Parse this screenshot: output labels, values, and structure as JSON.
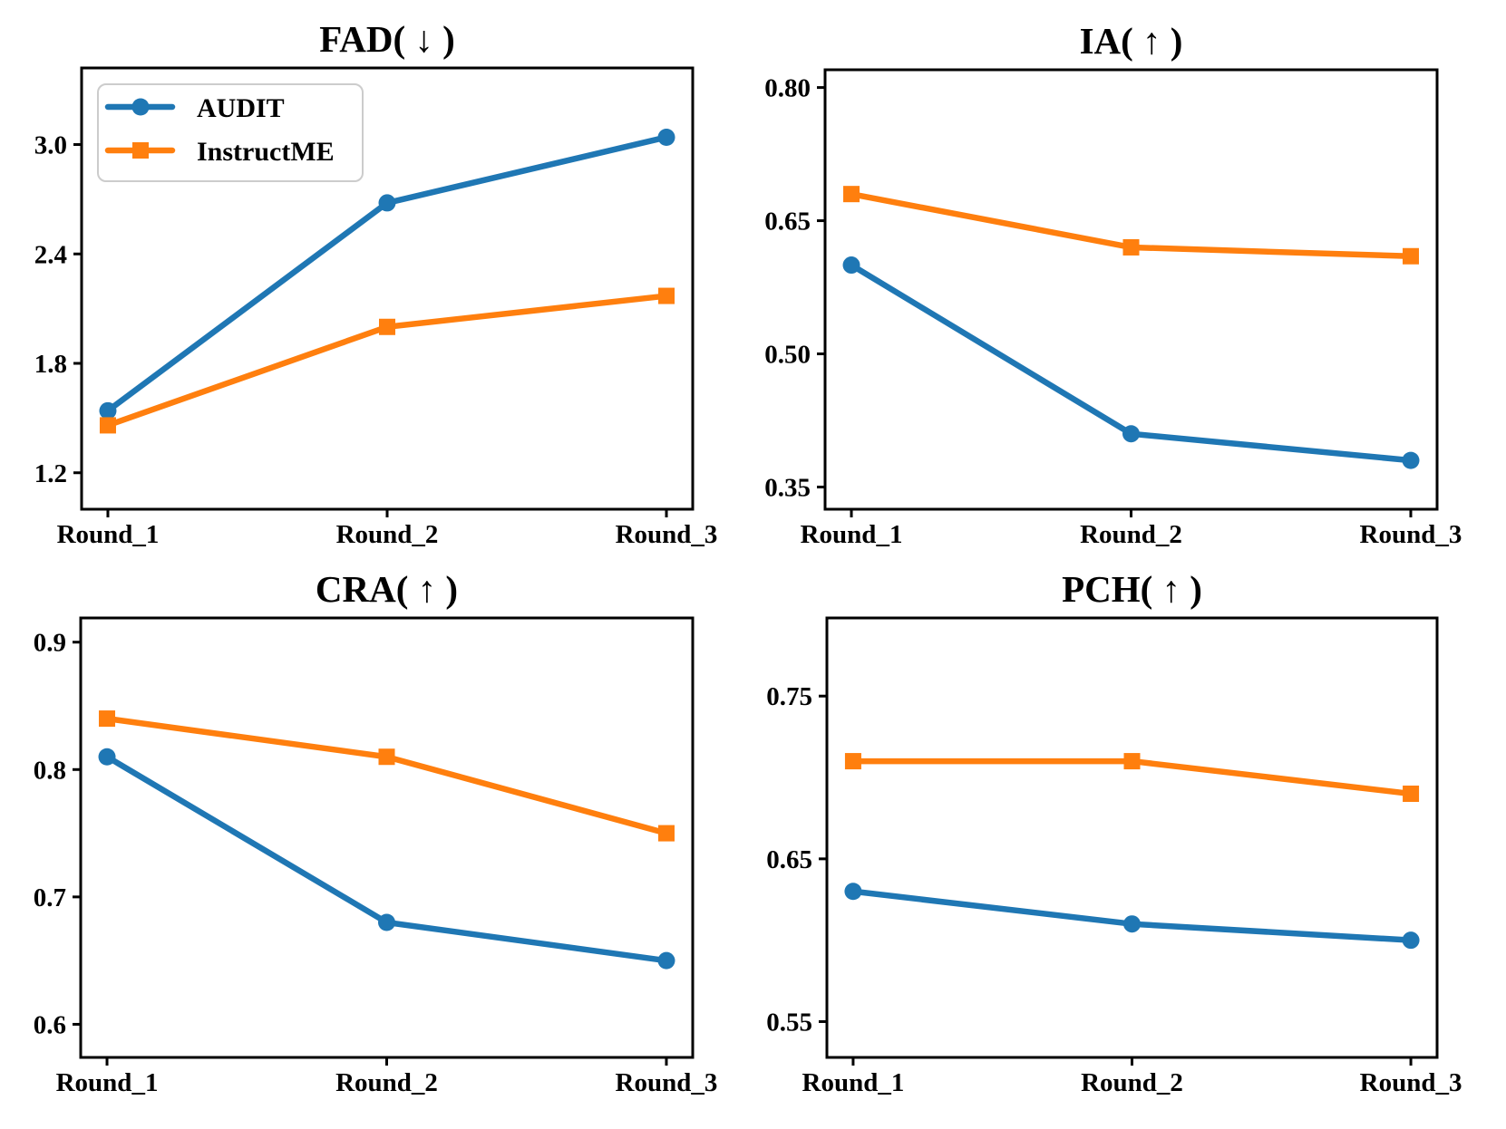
{
  "figure": {
    "background": "#ffffff",
    "rounds": [
      "Round_1",
      "Round_2",
      "Round_3"
    ]
  },
  "legend": {
    "entries": [
      {
        "label": "AUDIT",
        "color": "#1f77b4",
        "marker": "circle"
      },
      {
        "label": "InstructME",
        "color": "#ff7f0e",
        "marker": "square"
      }
    ],
    "border_color": "#cccccc",
    "background": "#ffffff"
  },
  "chart_data": [
    {
      "type": "line",
      "title": "FAD( ↓ )",
      "xlabel": "",
      "ylabel": "",
      "categories": [
        "Round_1",
        "Round_2",
        "Round_3"
      ],
      "series": [
        {
          "name": "AUDIT",
          "color": "#1f77b4",
          "marker": "circle",
          "values": [
            1.54,
            2.68,
            3.04
          ]
        },
        {
          "name": "InstructME",
          "color": "#ff7f0e",
          "marker": "square",
          "values": [
            1.46,
            2.0,
            2.17
          ]
        }
      ],
      "yticks": [
        1.2,
        1.8,
        2.4,
        3.0
      ],
      "ytick_labels": [
        "1.2",
        "1.8",
        "2.4",
        "3.0"
      ],
      "ylim": [
        1.0,
        3.42
      ],
      "grid": false,
      "legend": true,
      "legend_position": "upper left"
    },
    {
      "type": "line",
      "title": "IA( ↑ )",
      "xlabel": "",
      "ylabel": "",
      "categories": [
        "Round_1",
        "Round_2",
        "Round_3"
      ],
      "series": [
        {
          "name": "AUDIT",
          "color": "#1f77b4",
          "marker": "circle",
          "values": [
            0.6,
            0.41,
            0.38
          ]
        },
        {
          "name": "InstructME",
          "color": "#ff7f0e",
          "marker": "square",
          "values": [
            0.68,
            0.62,
            0.61
          ]
        }
      ],
      "yticks": [
        0.35,
        0.5,
        0.65,
        0.8
      ],
      "ytick_labels": [
        "0.35",
        "0.50",
        "0.65",
        "0.80"
      ],
      "ylim": [
        0.325,
        0.82
      ],
      "grid": false,
      "legend": false
    },
    {
      "type": "line",
      "title": "CRA( ↑ )",
      "xlabel": "",
      "ylabel": "",
      "categories": [
        "Round_1",
        "Round_2",
        "Round_3"
      ],
      "series": [
        {
          "name": "AUDIT",
          "color": "#1f77b4",
          "marker": "circle",
          "values": [
            0.81,
            0.68,
            0.65
          ]
        },
        {
          "name": "InstructME",
          "color": "#ff7f0e",
          "marker": "square",
          "values": [
            0.84,
            0.81,
            0.75
          ]
        }
      ],
      "yticks": [
        0.6,
        0.7,
        0.8,
        0.9
      ],
      "ytick_labels": [
        "0.6",
        "0.7",
        "0.8",
        "0.9"
      ],
      "ylim": [
        0.574,
        0.919
      ],
      "grid": false,
      "legend": false
    },
    {
      "type": "line",
      "title": "PCH( ↑ )",
      "xlabel": "",
      "ylabel": "",
      "categories": [
        "Round_1",
        "Round_2",
        "Round_3"
      ],
      "series": [
        {
          "name": "AUDIT",
          "color": "#1f77b4",
          "marker": "circle",
          "values": [
            0.63,
            0.61,
            0.6
          ]
        },
        {
          "name": "InstructME",
          "color": "#ff7f0e",
          "marker": "square",
          "values": [
            0.71,
            0.71,
            0.69
          ]
        }
      ],
      "yticks": [
        0.55,
        0.65,
        0.75
      ],
      "ytick_labels": [
        "0.55",
        "0.65",
        "0.75"
      ],
      "ylim": [
        0.528,
        0.798
      ],
      "grid": false,
      "legend": false
    }
  ]
}
